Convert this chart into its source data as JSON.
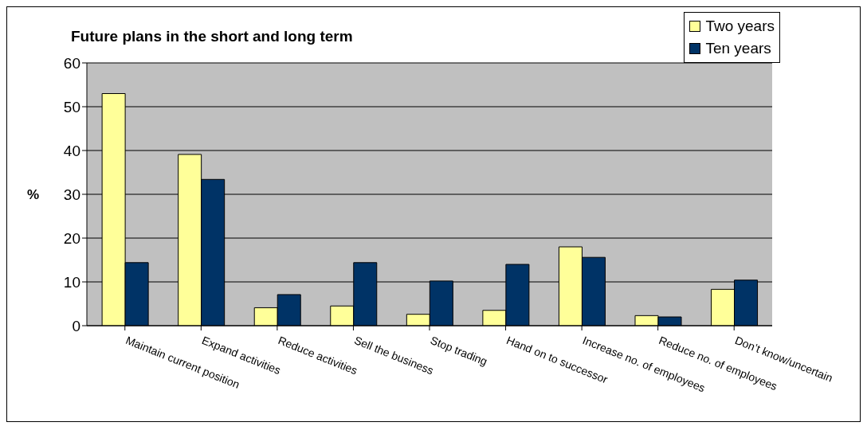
{
  "chart_data": {
    "type": "bar",
    "title": "Future plans in the short and long term",
    "ylabel": "%",
    "categories": [
      "Maintain current position",
      "Expand activities",
      "Reduce activities",
      "Sell the business",
      "Stop trading",
      "Hand on to successor",
      "Increase no. of employees",
      "Reduce no. of employees",
      "Don’t know/uncertain"
    ],
    "series": [
      {
        "name": "Two years",
        "color": "#ffff99",
        "values": [
          53,
          39.1,
          4.1,
          4.5,
          2.6,
          3.5,
          18,
          2.3,
          8.3
        ]
      },
      {
        "name": "Ten years",
        "color": "#003366",
        "values": [
          14.4,
          33.4,
          7.1,
          14.4,
          10.2,
          14,
          15.6,
          2,
          10.4
        ]
      }
    ],
    "ylim": [
      0,
      60
    ],
    "yticks": [
      0,
      10,
      20,
      30,
      40,
      50,
      60
    ],
    "grid": "y",
    "legend": "top right"
  }
}
